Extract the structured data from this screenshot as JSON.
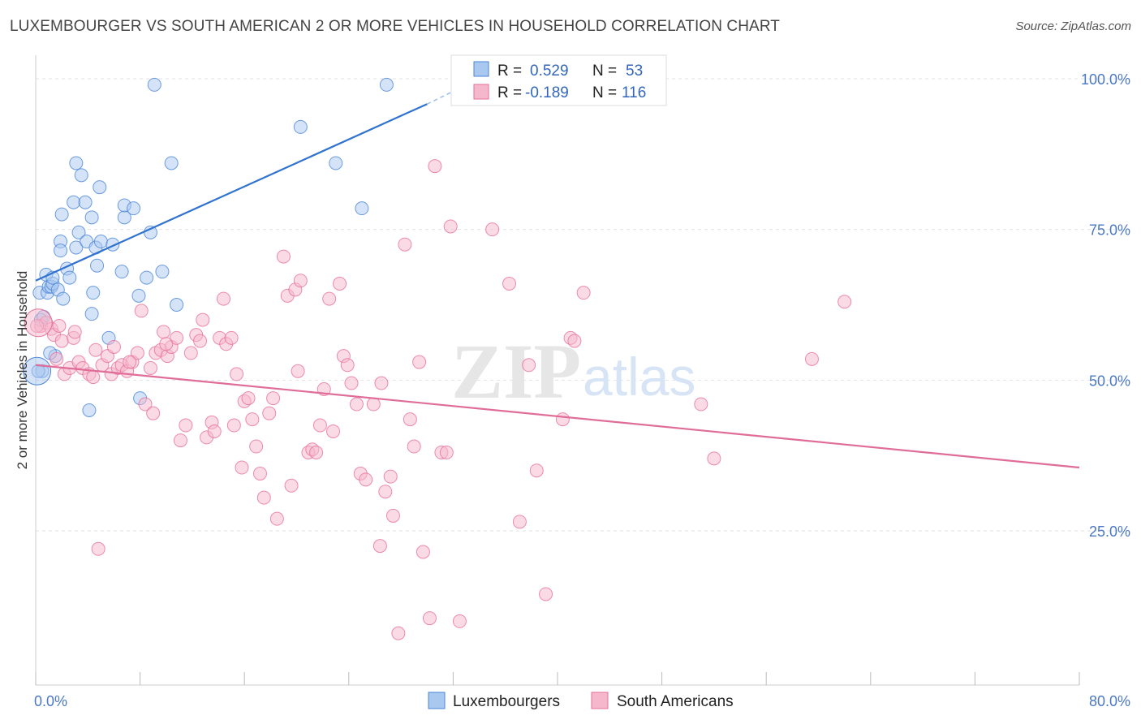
{
  "title": "LUXEMBOURGER VS SOUTH AMERICAN 2 OR MORE VEHICLES IN HOUSEHOLD CORRELATION CHART",
  "source": "Source: ZipAtlas.com",
  "watermark": {
    "zip": "ZIP",
    "atlas": "atlas"
  },
  "colors": {
    "blue": "#4a86d8",
    "blue_fill": "#a9c8ef",
    "pink": "#e8709a",
    "pink_fill": "#f5b7cc"
  },
  "legend_top": {
    "rows": [
      {
        "r_label": "R =",
        "r_value": "0.529",
        "n_label": "N =",
        "n_value": "53"
      },
      {
        "r_label": "R =",
        "r_value": "-0.189",
        "n_label": "N =",
        "n_value": "116"
      }
    ]
  },
  "legend_bottom": {
    "items": [
      "Luxembourgers",
      "South Americans"
    ]
  },
  "chart_data": {
    "type": "scatter",
    "title": "LUXEMBOURGER VS SOUTH AMERICAN 2 OR MORE VEHICLES IN HOUSEHOLD CORRELATION CHART",
    "xlabel": "",
    "ylabel": "2 or more Vehicles in Household",
    "xlim": [
      0,
      80
    ],
    "ylim": [
      0,
      100
    ],
    "x_tick_labels": [
      "0.0%",
      "80.0%"
    ],
    "y_tick_labels": [
      "100.0%",
      "75.0%",
      "50.0%",
      "25.0%"
    ],
    "y_ticks": [
      100,
      75,
      50,
      25
    ],
    "grid": true,
    "legend_position": "bottom",
    "series": [
      {
        "name": "Luxembourgers",
        "r": 0.529,
        "n": 53,
        "trend": {
          "x": [
            0,
            30
          ],
          "y": [
            66.5,
            95.8
          ],
          "dashed_to": [
            34,
            100
          ]
        },
        "points": [
          [
            0.3,
            64.5
          ],
          [
            0.4,
            60
          ],
          [
            0.5,
            51.5
          ],
          [
            0.8,
            67.5
          ],
          [
            0.9,
            64.5
          ],
          [
            1.0,
            65.5
          ],
          [
            1.2,
            65.5
          ],
          [
            1.3,
            66
          ],
          [
            1.3,
            67
          ],
          [
            1.5,
            54
          ],
          [
            1.7,
            65
          ],
          [
            1.9,
            73
          ],
          [
            1.9,
            71.5
          ],
          [
            2.0,
            77.5
          ],
          [
            2.1,
            63.5
          ],
          [
            2.4,
            68.5
          ],
          [
            2.6,
            67
          ],
          [
            2.9,
            79.5
          ],
          [
            3.1,
            72
          ],
          [
            3.1,
            86
          ],
          [
            3.3,
            74.5
          ],
          [
            3.5,
            84
          ],
          [
            3.8,
            79.5
          ],
          [
            3.9,
            73
          ],
          [
            4.1,
            45
          ],
          [
            4.3,
            77
          ],
          [
            4.3,
            61
          ],
          [
            4.4,
            64.5
          ],
          [
            4.6,
            72
          ],
          [
            4.7,
            69
          ],
          [
            4.9,
            82
          ],
          [
            5.0,
            73
          ],
          [
            5.6,
            57
          ],
          [
            5.9,
            72.5
          ],
          [
            6.6,
            68
          ],
          [
            6.8,
            77
          ],
          [
            6.8,
            79
          ],
          [
            7.5,
            78.5
          ],
          [
            7.9,
            64
          ],
          [
            8.0,
            47
          ],
          [
            8.5,
            67
          ],
          [
            8.8,
            74.5
          ],
          [
            9.1,
            99
          ],
          [
            9.7,
            68
          ],
          [
            10.4,
            86
          ],
          [
            10.8,
            62.5
          ],
          [
            20.3,
            92
          ],
          [
            23.0,
            86
          ],
          [
            25.0,
            78.5
          ],
          [
            26.9,
            99
          ],
          [
            0.2,
            51.5
          ],
          [
            0.6,
            60.5
          ],
          [
            1.1,
            54.5
          ]
        ]
      },
      {
        "name": "South Americans",
        "r": -0.189,
        "n": 116,
        "trend": {
          "x": [
            0,
            80
          ],
          "y": [
            52.5,
            35.5
          ]
        },
        "points": [
          [
            0.4,
            59
          ],
          [
            0.8,
            59.5
          ],
          [
            1.2,
            58.5
          ],
          [
            1.4,
            57.5
          ],
          [
            1.6,
            53.5
          ],
          [
            2.0,
            56.5
          ],
          [
            2.2,
            51
          ],
          [
            2.6,
            52
          ],
          [
            2.9,
            57
          ],
          [
            3.3,
            53
          ],
          [
            3.6,
            52
          ],
          [
            4.1,
            51
          ],
          [
            4.4,
            50.5
          ],
          [
            4.6,
            55
          ],
          [
            4.8,
            22
          ],
          [
            5.1,
            52.5
          ],
          [
            5.5,
            54
          ],
          [
            5.8,
            51
          ],
          [
            6.0,
            55.5
          ],
          [
            6.3,
            52
          ],
          [
            6.6,
            52.5
          ],
          [
            7.0,
            51.5
          ],
          [
            7.4,
            53
          ],
          [
            7.8,
            54.5
          ],
          [
            8.1,
            61.5
          ],
          [
            8.4,
            46
          ],
          [
            8.8,
            52
          ],
          [
            9.0,
            44.5
          ],
          [
            9.2,
            54.5
          ],
          [
            9.6,
            55
          ],
          [
            9.8,
            58
          ],
          [
            10.1,
            54
          ],
          [
            10.4,
            55.5
          ],
          [
            10.8,
            57
          ],
          [
            11.1,
            40
          ],
          [
            11.5,
            42.5
          ],
          [
            11.9,
            54.5
          ],
          [
            12.3,
            57.5
          ],
          [
            12.6,
            56.5
          ],
          [
            12.8,
            60
          ],
          [
            13.1,
            40.5
          ],
          [
            13.5,
            43
          ],
          [
            13.7,
            41.5
          ],
          [
            14.1,
            57
          ],
          [
            14.4,
            63.5
          ],
          [
            14.6,
            56
          ],
          [
            15.0,
            57
          ],
          [
            15.2,
            42.5
          ],
          [
            15.4,
            51
          ],
          [
            15.8,
            35.5
          ],
          [
            16.0,
            46.5
          ],
          [
            16.3,
            47
          ],
          [
            16.6,
            43.5
          ],
          [
            16.9,
            39
          ],
          [
            17.2,
            34.5
          ],
          [
            17.5,
            30.5
          ],
          [
            17.9,
            44.5
          ],
          [
            18.2,
            47
          ],
          [
            18.5,
            27
          ],
          [
            19.0,
            70.5
          ],
          [
            19.3,
            64
          ],
          [
            19.6,
            32.5
          ],
          [
            19.9,
            65
          ],
          [
            20.1,
            51.5
          ],
          [
            20.3,
            66.5
          ],
          [
            20.9,
            38
          ],
          [
            21.2,
            38.5
          ],
          [
            21.5,
            38
          ],
          [
            21.8,
            42.5
          ],
          [
            22.1,
            48.5
          ],
          [
            22.5,
            63.5
          ],
          [
            22.8,
            41.5
          ],
          [
            23.3,
            66
          ],
          [
            23.6,
            54
          ],
          [
            23.9,
            52.5
          ],
          [
            24.2,
            49.5
          ],
          [
            24.6,
            46
          ],
          [
            24.9,
            34.5
          ],
          [
            25.3,
            33.5
          ],
          [
            25.9,
            46
          ],
          [
            26.4,
            22.5
          ],
          [
            26.5,
            49.5
          ],
          [
            26.8,
            31.5
          ],
          [
            27.2,
            34
          ],
          [
            27.4,
            27.5
          ],
          [
            27.8,
            8
          ],
          [
            28.3,
            72.5
          ],
          [
            28.7,
            43.5
          ],
          [
            29.0,
            39
          ],
          [
            29.4,
            53
          ],
          [
            29.7,
            21.5
          ],
          [
            30.2,
            10.5
          ],
          [
            30.6,
            85.5
          ],
          [
            31.1,
            38
          ],
          [
            31.5,
            38
          ],
          [
            31.8,
            75.5
          ],
          [
            32.5,
            10
          ],
          [
            35.0,
            75
          ],
          [
            36.3,
            66
          ],
          [
            37.1,
            26.5
          ],
          [
            37.8,
            52.5
          ],
          [
            38.4,
            35
          ],
          [
            39.1,
            14.5
          ],
          [
            40.4,
            43.5
          ],
          [
            41.0,
            57
          ],
          [
            41.3,
            56.5
          ],
          [
            42.0,
            64.5
          ],
          [
            51.0,
            46
          ],
          [
            52.0,
            37
          ],
          [
            59.5,
            53.5
          ],
          [
            62.0,
            63
          ],
          [
            0.1,
            59
          ],
          [
            1.8,
            59
          ],
          [
            3.0,
            58
          ],
          [
            7.2,
            53
          ],
          [
            10.0,
            56
          ]
        ]
      }
    ]
  },
  "y_axis_label": "2 or more Vehicles in Household"
}
